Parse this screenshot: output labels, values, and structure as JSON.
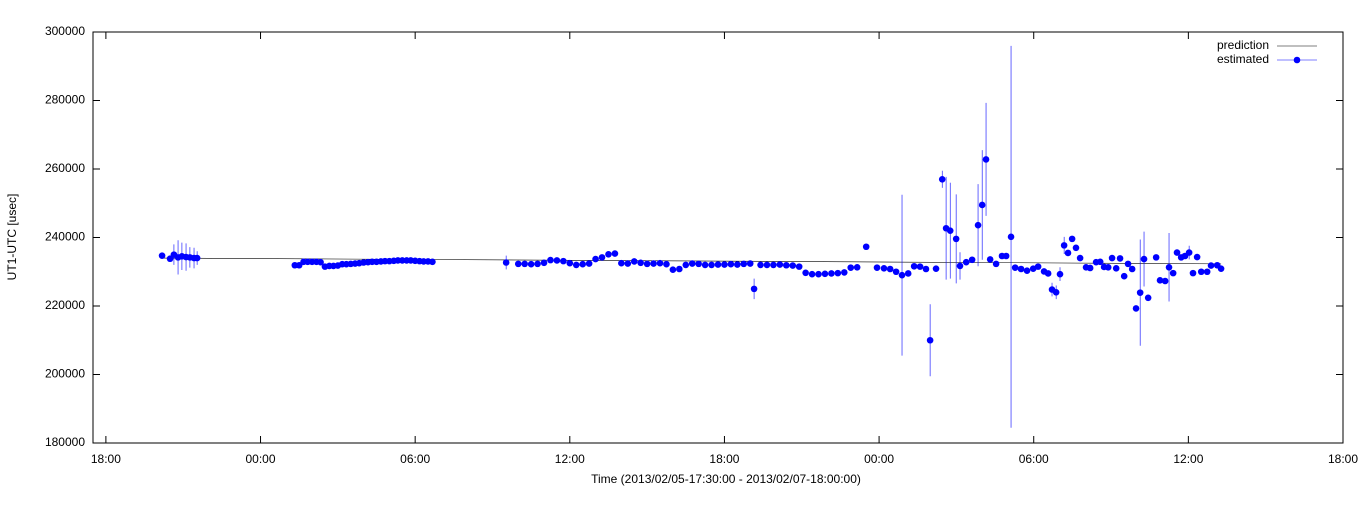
{
  "chart_data": {
    "type": "scatter",
    "x_label": "Time (2013/02/05-17:30:00 - 2013/02/07-18:00:00)",
    "y_label": "UT1-UTC [usec]",
    "xlim": [
      17.5,
      66
    ],
    "xticks": [
      {
        "value": 18,
        "label": "18:00"
      },
      {
        "value": 24,
        "label": "00:00"
      },
      {
        "value": 30,
        "label": "06:00"
      },
      {
        "value": 36,
        "label": "12:00"
      },
      {
        "value": 42,
        "label": "18:00"
      },
      {
        "value": 48,
        "label": "00:00"
      },
      {
        "value": 54,
        "label": "06:00"
      },
      {
        "value": 60,
        "label": "12:00"
      },
      {
        "value": 66,
        "label": "18:00"
      }
    ],
    "ylim": [
      180000,
      300000
    ],
    "yticks": [
      180000,
      200000,
      220000,
      240000,
      260000,
      280000,
      300000
    ],
    "legend": "upper right",
    "series": [
      {
        "name": "prediction",
        "color": "#000000",
        "style": "line",
        "x": [
          20.18,
          61.27
        ],
        "values": [
          234000,
          232300
        ]
      },
      {
        "name": "estimated",
        "color": "#0000ff",
        "style": "points",
        "x": [
          20.18,
          20.49,
          20.64,
          20.8,
          20.95,
          21.11,
          21.26,
          21.42,
          21.54,
          25.33,
          25.5,
          25.67,
          25.83,
          26.0,
          26.17,
          26.33,
          26.5,
          26.67,
          26.83,
          27.0,
          27.17,
          27.33,
          27.5,
          27.67,
          27.83,
          28.0,
          28.17,
          28.33,
          28.5,
          28.67,
          28.83,
          29.0,
          29.17,
          29.33,
          29.5,
          29.67,
          29.83,
          30.0,
          30.17,
          30.33,
          30.5,
          30.67,
          33.53,
          34.0,
          34.25,
          34.5,
          34.75,
          35.0,
          35.25,
          35.5,
          35.75,
          36.0,
          36.25,
          36.5,
          36.75,
          37.0,
          37.25,
          37.5,
          37.75,
          38.0,
          38.25,
          38.5,
          38.75,
          39.0,
          39.25,
          39.5,
          39.75,
          40.0,
          40.25,
          40.5,
          40.75,
          41.0,
          41.25,
          41.5,
          41.75,
          42.0,
          42.25,
          42.5,
          42.75,
          43.0,
          43.15,
          43.4,
          43.65,
          43.9,
          44.15,
          44.4,
          44.65,
          44.9,
          45.15,
          45.4,
          45.65,
          45.9,
          46.15,
          46.4,
          46.65,
          46.9,
          47.15,
          47.5,
          47.92,
          48.19,
          48.43,
          48.66,
          48.89,
          49.13,
          49.36,
          49.59,
          49.82,
          49.98,
          50.21,
          50.45,
          50.6,
          50.76,
          50.99,
          51.14,
          51.38,
          51.61,
          51.84,
          52.0,
          52.15,
          52.31,
          52.54,
          52.77,
          52.93,
          53.12,
          53.28,
          53.51,
          53.74,
          53.98,
          54.17,
          54.4,
          54.56,
          54.71,
          54.87,
          55.02,
          55.18,
          55.33,
          55.49,
          55.64,
          55.8,
          56.03,
          56.19,
          56.42,
          56.58,
          56.73,
          56.89,
          57.04,
          57.2,
          57.35,
          57.51,
          57.66,
          57.82,
          57.97,
          58.13,
          58.28,
          58.44,
          58.75,
          58.9,
          59.1,
          59.25,
          59.41,
          59.56,
          59.72,
          59.87,
          60.03,
          60.18,
          60.34,
          60.5,
          60.73,
          60.88,
          61.12,
          61.27
        ],
        "values": [
          234700,
          233800,
          235000,
          234200,
          234500,
          234300,
          234200,
          234000,
          234000,
          231900,
          231900,
          232900,
          232900,
          232900,
          232900,
          232800,
          231500,
          231700,
          231700,
          231800,
          232200,
          232200,
          232300,
          232400,
          232500,
          232700,
          232800,
          232900,
          232900,
          233000,
          233100,
          233100,
          233200,
          233300,
          233300,
          233300,
          233300,
          233200,
          233100,
          233000,
          233000,
          232900,
          232700,
          232300,
          232300,
          232200,
          232300,
          232600,
          233400,
          233300,
          233100,
          232500,
          232000,
          232200,
          232400,
          233700,
          234200,
          235100,
          235300,
          232500,
          232400,
          233000,
          232600,
          232300,
          232400,
          232500,
          232200,
          230600,
          230800,
          232000,
          232400,
          232300,
          232000,
          232000,
          232100,
          232100,
          232200,
          232100,
          232300,
          232400,
          225000,
          232000,
          232000,
          232000,
          232100,
          231900,
          231800,
          231500,
          229700,
          229300,
          229300,
          229400,
          229500,
          229600,
          229800,
          231200,
          231300,
          237300,
          231200,
          231000,
          230800,
          230000,
          229000,
          229500,
          231600,
          231500,
          230800,
          210000,
          230900,
          257000,
          242700,
          242000,
          239600,
          231700,
          232800,
          233500,
          243600,
          249500,
          262800,
          233600,
          232300,
          234600,
          234600,
          240200,
          231200,
          230800,
          230300,
          230900,
          231500,
          230100,
          229500,
          224800,
          224000,
          229300,
          237700,
          235500,
          239600,
          237000,
          234000,
          231300,
          231100,
          232800,
          232900,
          231400,
          231300,
          234000,
          231000,
          233900,
          228700,
          232300,
          230800,
          219300,
          223900,
          233700,
          222400,
          234200,
          227500,
          227300,
          231300,
          229600,
          235600,
          234200,
          234600,
          235600,
          229600,
          234300,
          230000,
          230000,
          231800,
          231900,
          230900
        ],
        "errors": [
          null,
          null,
          3000,
          5000,
          4000,
          4000,
          3000,
          3000,
          2000,
          null,
          null,
          null,
          null,
          null,
          null,
          null,
          null,
          null,
          null,
          null,
          null,
          null,
          null,
          null,
          null,
          null,
          null,
          null,
          null,
          null,
          null,
          null,
          null,
          null,
          null,
          null,
          null,
          null,
          null,
          null,
          null,
          null,
          2000,
          null,
          null,
          null,
          null,
          null,
          null,
          null,
          null,
          null,
          null,
          null,
          null,
          null,
          null,
          null,
          null,
          null,
          null,
          null,
          null,
          null,
          null,
          null,
          null,
          null,
          null,
          null,
          null,
          null,
          null,
          null,
          null,
          null,
          null,
          null,
          null,
          null,
          3000,
          null,
          null,
          null,
          null,
          null,
          null,
          null,
          null,
          null,
          null,
          null,
          null,
          null,
          null,
          null,
          null,
          null,
          null,
          null,
          null,
          null,
          23500,
          null,
          null,
          null,
          null,
          10500,
          null,
          2500,
          15000,
          14000,
          13000,
          4000,
          null,
          null,
          12000,
          16000,
          16500,
          null,
          null,
          null,
          null,
          55750,
          null,
          null,
          null,
          null,
          null,
          null,
          null,
          2000,
          2000,
          2000,
          2500,
          null,
          null,
          null,
          null,
          null,
          null,
          null,
          null,
          null,
          null,
          null,
          null,
          null,
          null,
          null,
          null,
          null,
          15500,
          8000,
          null,
          null,
          null,
          null,
          10000,
          null,
          null,
          null,
          null,
          2000,
          null,
          null,
          null,
          null,
          null,
          null,
          null
        ]
      }
    ]
  }
}
